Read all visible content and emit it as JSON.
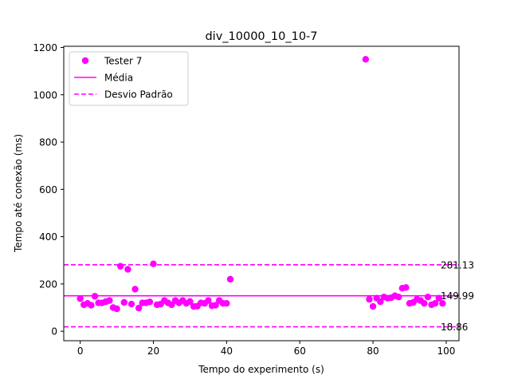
{
  "chart_data": {
    "type": "scatter",
    "title": "div_10000_10_10-7",
    "xlabel": "Tempo do experimento (s)",
    "ylabel": "Tempo até conexão (ms)",
    "xlim": [
      -4.5,
      103.5
    ],
    "ylim": [
      -40,
      1205
    ],
    "xticks": [
      0,
      20,
      40,
      60,
      80,
      100
    ],
    "yticks": [
      0,
      200,
      400,
      600,
      800,
      1000,
      1200
    ],
    "grid": false,
    "legend": {
      "position": "top-left",
      "entries": [
        {
          "label": "Tester 7",
          "kind": "marker",
          "color": "#ff00ff"
        },
        {
          "label": "Média",
          "kind": "solid-line",
          "color": "#ff00ff"
        },
        {
          "label": "Desvio Padrão",
          "kind": "dashed-line",
          "color": "#ff00ff"
        }
      ]
    },
    "series": [
      {
        "name": "Tester 7",
        "color": "#ff00ff",
        "points": [
          [
            0,
            138
          ],
          [
            1,
            112
          ],
          [
            2,
            118
          ],
          [
            3,
            110
          ],
          [
            4,
            148
          ],
          [
            5,
            120
          ],
          [
            6,
            120
          ],
          [
            7,
            125
          ],
          [
            8,
            130
          ],
          [
            9,
            100
          ],
          [
            10,
            95
          ],
          [
            11,
            275
          ],
          [
            12,
            122
          ],
          [
            13,
            262
          ],
          [
            14,
            115
          ],
          [
            15,
            178
          ],
          [
            16,
            98
          ],
          [
            17,
            120
          ],
          [
            18,
            120
          ],
          [
            19,
            124
          ],
          [
            20,
            285
          ],
          [
            21,
            112
          ],
          [
            22,
            115
          ],
          [
            23,
            130
          ],
          [
            24,
            120
          ],
          [
            25,
            112
          ],
          [
            26,
            130
          ],
          [
            27,
            120
          ],
          [
            28,
            130
          ],
          [
            29,
            118
          ],
          [
            30,
            126
          ],
          [
            31,
            105
          ],
          [
            32,
            106
          ],
          [
            33,
            120
          ],
          [
            34,
            118
          ],
          [
            35,
            130
          ],
          [
            36,
            108
          ],
          [
            37,
            110
          ],
          [
            38,
            130
          ],
          [
            39,
            118
          ],
          [
            40,
            118
          ],
          [
            41,
            220
          ],
          [
            78,
            1150
          ],
          [
            79,
            135
          ],
          [
            80,
            105
          ],
          [
            81,
            140
          ],
          [
            82,
            125
          ],
          [
            83,
            145
          ],
          [
            84,
            140
          ],
          [
            85,
            142
          ],
          [
            86,
            150
          ],
          [
            87,
            145
          ],
          [
            88,
            182
          ],
          [
            89,
            185
          ],
          [
            90,
            118
          ],
          [
            91,
            122
          ],
          [
            92,
            135
          ],
          [
            93,
            130
          ],
          [
            94,
            118
          ],
          [
            95,
            145
          ],
          [
            96,
            112
          ],
          [
            97,
            118
          ],
          [
            98,
            140
          ],
          [
            99,
            118
          ]
        ]
      }
    ],
    "reference_lines": [
      {
        "label": "281.13",
        "value": 281.13,
        "style": "dashed",
        "color": "#ff00ff"
      },
      {
        "label": "149.99",
        "value": 149.99,
        "style": "solid",
        "color": "#ff00ff"
      },
      {
        "label": "18.86",
        "value": 18.86,
        "style": "dashed",
        "color": "#ff00ff"
      }
    ]
  }
}
